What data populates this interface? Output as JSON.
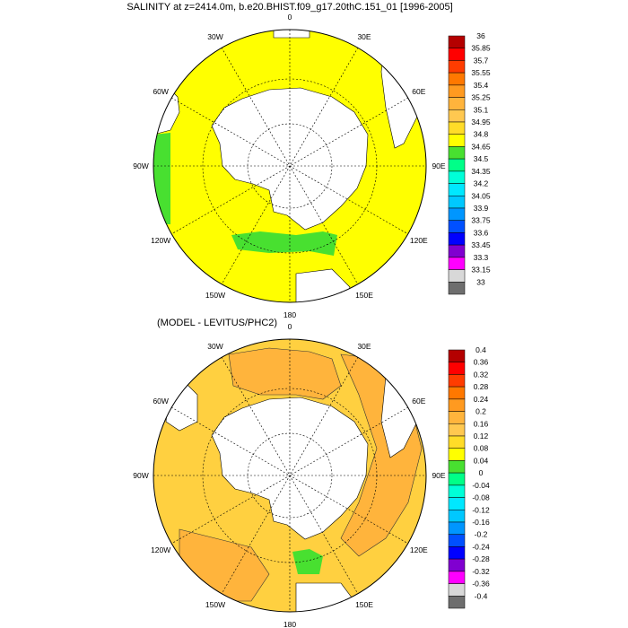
{
  "panels": [
    {
      "title": "SALINITY at z=2414.0m, b.e20.BHIST.f09_g17.20thC.151_01 [1996-2005]",
      "fill_color": "#ffff00",
      "colorbar": {
        "labels": [
          "36",
          "35.85",
          "35.7",
          "35.55",
          "35.4",
          "35.25",
          "35.1",
          "34.95",
          "34.8",
          "34.65",
          "34.5",
          "34.35",
          "34.2",
          "34.05",
          "33.9",
          "33.75",
          "33.6",
          "33.45",
          "33.3",
          "33.15",
          "33"
        ],
        "colors": [
          "#b40000",
          "#ff0000",
          "#ff3c00",
          "#ff7800",
          "#ff9a20",
          "#ffb43c",
          "#ffc850",
          "#ffdc28",
          "#ffff00",
          "#48e030",
          "#00ff88",
          "#00ffd8",
          "#00e8ff",
          "#00c8ff",
          "#0096ff",
          "#0050ff",
          "#0000ff",
          "#8000d0",
          "#ff00ff",
          "#d8d8d8",
          "#6e6e6e"
        ]
      }
    },
    {
      "title": "(MODEL - LEVITUS/PHC2)",
      "fill_color": "#ffd040",
      "colorbar": {
        "labels": [
          "0.4",
          "0.36",
          "0.32",
          "0.28",
          "0.24",
          "0.2",
          "0.16",
          "0.12",
          "0.08",
          "0.04",
          "0",
          "-0.04",
          "-0.08",
          "-0.12",
          "-0.16",
          "-0.2",
          "-0.24",
          "-0.28",
          "-0.32",
          "-0.36",
          "-0.4"
        ],
        "colors": [
          "#b40000",
          "#ff0000",
          "#ff3c00",
          "#ff7800",
          "#ff9a20",
          "#ffb43c",
          "#ffc850",
          "#ffdc28",
          "#ffff00",
          "#48e030",
          "#00ff88",
          "#00ffd8",
          "#00e8ff",
          "#00c8ff",
          "#0096ff",
          "#0050ff",
          "#0000ff",
          "#8000d0",
          "#ff00ff",
          "#d8d8d8",
          "#6e6e6e"
        ]
      }
    }
  ],
  "longitude_labels": [
    "0",
    "30E",
    "60E",
    "90E",
    "120E",
    "150E",
    "180",
    "150W",
    "120W",
    "90W",
    "60W",
    "30W"
  ],
  "colors": {
    "land": "#ffffff",
    "green_patch": "#48e030",
    "orange_patch": "#ffb43c"
  }
}
